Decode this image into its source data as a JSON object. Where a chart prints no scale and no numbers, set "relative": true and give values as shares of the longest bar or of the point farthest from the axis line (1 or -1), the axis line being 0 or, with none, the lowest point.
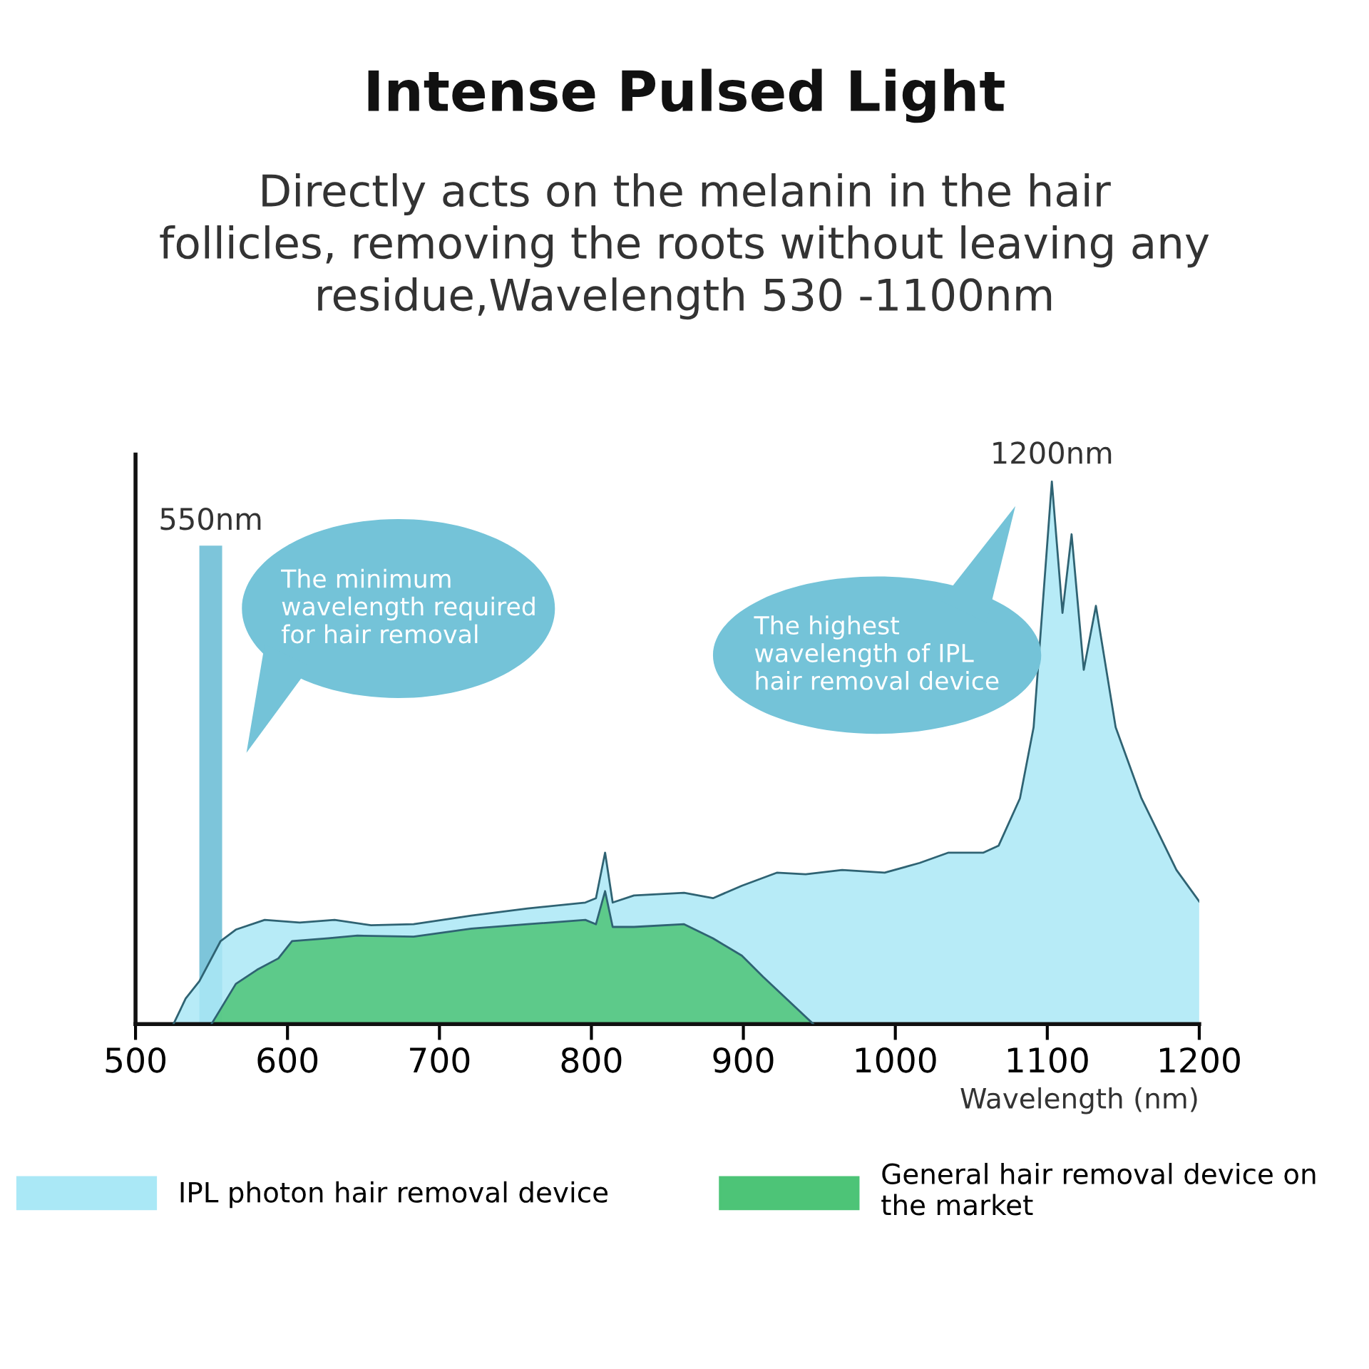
{
  "chart_data": {
    "type": "area",
    "title": "Intense Pulsed Light",
    "subtitle": "Directly acts on the melanin in the hair\nfollicles, removing the roots without leaving any\nresidue,Wavelength 530 -1100nm",
    "xlabel": "Wavelength (nm)",
    "relative": true,
    "xlim": [
      500,
      1200
    ],
    "xticks": [
      500,
      600,
      700,
      800,
      900,
      1000,
      1100,
      1200
    ],
    "tick_labels": "x",
    "grid": false,
    "legend": "bottom",
    "series": [
      {
        "name": "IPL photon hair removal device",
        "color": "#aae8f6",
        "x": [
          525,
          533,
          542,
          556,
          566,
          585,
          608,
          631,
          655,
          683,
          721,
          758,
          796,
          803,
          809,
          814,
          828,
          861,
          880,
          899,
          922,
          941,
          965,
          993,
          1016,
          1035,
          1058,
          1068,
          1082,
          1091,
          1103,
          1110,
          1116,
          1124,
          1132,
          1145,
          1162,
          1185,
          1200
        ],
        "values": [
          0,
          0.047,
          0.079,
          0.153,
          0.174,
          0.192,
          0.187,
          0.192,
          0.182,
          0.184,
          0.2,
          0.213,
          0.224,
          0.232,
          0.316,
          0.224,
          0.237,
          0.242,
          0.232,
          0.255,
          0.279,
          0.276,
          0.284,
          0.279,
          0.297,
          0.316,
          0.316,
          0.329,
          0.416,
          0.547,
          1.0,
          0.758,
          0.903,
          0.653,
          0.771,
          0.547,
          0.416,
          0.284,
          0.226
        ]
      },
      {
        "name": "General hair removal device on\nthe market",
        "color": "#4dc477",
        "x": [
          550,
          566,
          580,
          594,
          603,
          627,
          646,
          683,
          721,
          758,
          796,
          803,
          809,
          814,
          828,
          861,
          880,
          899,
          913,
          946
        ],
        "values": [
          0,
          0.074,
          0.1,
          0.121,
          0.153,
          0.158,
          0.163,
          0.161,
          0.176,
          0.184,
          0.192,
          0.184,
          0.245,
          0.179,
          0.179,
          0.184,
          0.158,
          0.126,
          0.087,
          0
        ]
      }
    ],
    "bands": [
      {
        "axis": "x",
        "from": 542,
        "to": 557,
        "label": "550nm",
        "color": "#6fbfd6"
      }
    ],
    "annotations": [
      {
        "text": "1200nm",
        "x": 1103,
        "y": 1.0
      },
      "The minimum\nwavelength required\nfor hair removal",
      "The highest\nwavelength of IPL\nhair removal device"
    ]
  }
}
